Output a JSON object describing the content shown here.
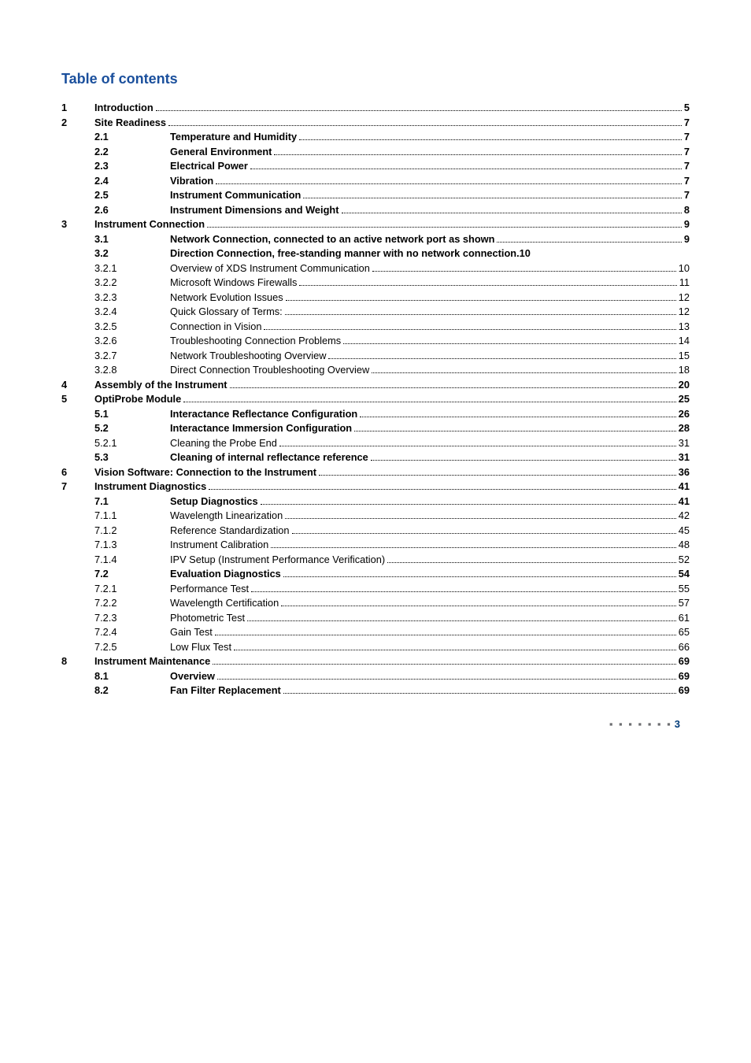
{
  "title": "Table of contents",
  "title_color": "#1a4f9c",
  "title_fontsize": 18,
  "text_color": "#000000",
  "footer_pagenum": "3",
  "footer_dot_color": "#6d6e71",
  "footer_pg_color": "#003b79",
  "entries": [
    {
      "level": 1,
      "bold": true,
      "num": "1",
      "sub": "",
      "title": "Introduction",
      "page": "5"
    },
    {
      "level": 1,
      "bold": true,
      "num": "2",
      "sub": "",
      "title": "Site Readiness",
      "page": "7"
    },
    {
      "level": 2,
      "bold": true,
      "num": "",
      "sub": "2.1",
      "title": "Temperature and Humidity",
      "page": "7"
    },
    {
      "level": 2,
      "bold": true,
      "num": "",
      "sub": "2.2",
      "title": "General Environment",
      "page": "7"
    },
    {
      "level": 2,
      "bold": true,
      "num": "",
      "sub": "2.3",
      "title": "Electrical Power",
      "page": "7"
    },
    {
      "level": 2,
      "bold": true,
      "num": "",
      "sub": "2.4",
      "title": "Vibration",
      "page": "7"
    },
    {
      "level": 2,
      "bold": true,
      "num": "",
      "sub": "2.5",
      "title": "Instrument Communication",
      "page": "7"
    },
    {
      "level": 2,
      "bold": true,
      "num": "",
      "sub": "2.6",
      "title": "Instrument Dimensions and Weight",
      "page": "8"
    },
    {
      "level": 1,
      "bold": true,
      "num": "3",
      "sub": "",
      "title": "Instrument Connection",
      "page": "9"
    },
    {
      "level": 2,
      "bold": true,
      "num": "",
      "sub": "3.1",
      "title": "Network Connection, connected to an active network port as shown",
      "page": "9"
    },
    {
      "level": 2,
      "bold": true,
      "num": "",
      "sub": "3.2",
      "title": "Direction Connection, free-standing manner with no network connection.",
      "page": "10",
      "nodots": true
    },
    {
      "level": 2,
      "bold": false,
      "num": "",
      "sub": "3.2.1",
      "title": "Overview of XDS Instrument Communication",
      "page": "10"
    },
    {
      "level": 2,
      "bold": false,
      "num": "",
      "sub": "3.2.2",
      "title": "Microsoft Windows Firewalls",
      "page": "11"
    },
    {
      "level": 2,
      "bold": false,
      "num": "",
      "sub": "3.2.3",
      "title": "Network Evolution Issues",
      "page": "12"
    },
    {
      "level": 2,
      "bold": false,
      "num": "",
      "sub": "3.2.4",
      "title": "Quick Glossary of Terms:",
      "page": "12"
    },
    {
      "level": 2,
      "bold": false,
      "num": "",
      "sub": "3.2.5",
      "title": "Connection in Vision",
      "page": "13"
    },
    {
      "level": 2,
      "bold": false,
      "num": "",
      "sub": "3.2.6",
      "title": "Troubleshooting Connection Problems",
      "page": "14"
    },
    {
      "level": 2,
      "bold": false,
      "num": "",
      "sub": "3.2.7",
      "title": "Network Troubleshooting Overview",
      "page": "15"
    },
    {
      "level": 2,
      "bold": false,
      "num": "",
      "sub": "3.2.8",
      "title": "Direct Connection Troubleshooting Overview",
      "page": "18"
    },
    {
      "level": 1,
      "bold": true,
      "num": "4",
      "sub": "",
      "title": "Assembly of the Instrument",
      "page": "20"
    },
    {
      "level": 1,
      "bold": true,
      "num": "5",
      "sub": "",
      "title": "OptiProbe Module",
      "page": "25"
    },
    {
      "level": 2,
      "bold": true,
      "num": "",
      "sub": "5.1",
      "title": "Interactance Reflectance Configuration",
      "page": "26"
    },
    {
      "level": 2,
      "bold": true,
      "num": "",
      "sub": "5.2",
      "title": "Interactance Immersion Configuration",
      "page": "28"
    },
    {
      "level": 2,
      "bold": false,
      "num": "",
      "sub": "5.2.1",
      "title": "Cleaning the Probe End",
      "page": "31"
    },
    {
      "level": 2,
      "bold": true,
      "num": "",
      "sub": "5.3",
      "title": "Cleaning of internal reflectance reference",
      "page": "31"
    },
    {
      "level": 1,
      "bold": true,
      "num": "6",
      "sub": "",
      "title": "Vision Software: Connection to the Instrument",
      "page": "36"
    },
    {
      "level": 1,
      "bold": true,
      "num": "7",
      "sub": "",
      "title": "Instrument Diagnostics",
      "page": "41"
    },
    {
      "level": 2,
      "bold": true,
      "num": "",
      "sub": "7.1",
      "title": "Setup Diagnostics",
      "page": "41"
    },
    {
      "level": 2,
      "bold": false,
      "num": "",
      "sub": "7.1.1",
      "title": "Wavelength Linearization",
      "page": "42"
    },
    {
      "level": 2,
      "bold": false,
      "num": "",
      "sub": "7.1.2",
      "title": "Reference Standardization",
      "page": "45"
    },
    {
      "level": 2,
      "bold": false,
      "num": "",
      "sub": "7.1.3",
      "title": "Instrument Calibration",
      "page": "48"
    },
    {
      "level": 2,
      "bold": false,
      "num": "",
      "sub": "7.1.4",
      "title": "IPV Setup (Instrument Performance Verification)",
      "page": "52"
    },
    {
      "level": 2,
      "bold": true,
      "num": "",
      "sub": "7.2",
      "title": "Evaluation Diagnostics",
      "page": "54"
    },
    {
      "level": 2,
      "bold": false,
      "num": "",
      "sub": "7.2.1",
      "title": "Performance Test",
      "page": "55"
    },
    {
      "level": 2,
      "bold": false,
      "num": "",
      "sub": "7.2.2",
      "title": "Wavelength Certification",
      "page": "57"
    },
    {
      "level": 2,
      "bold": false,
      "num": "",
      "sub": "7.2.3",
      "title": "Photometric Test",
      "page": "61"
    },
    {
      "level": 2,
      "bold": false,
      "num": "",
      "sub": "7.2.4",
      "title": "Gain Test",
      "page": "65"
    },
    {
      "level": 2,
      "bold": false,
      "num": "",
      "sub": "7.2.5",
      "title": "Low Flux Test",
      "page": "66"
    },
    {
      "level": 1,
      "bold": true,
      "num": "8",
      "sub": "",
      "title": "Instrument Maintenance",
      "page": "69"
    },
    {
      "level": 2,
      "bold": true,
      "num": "",
      "sub": "8.1",
      "title": "Overview",
      "page": "69"
    },
    {
      "level": 2,
      "bold": true,
      "num": "",
      "sub": "8.2",
      "title": "Fan Filter Replacement",
      "page": "69"
    }
  ]
}
